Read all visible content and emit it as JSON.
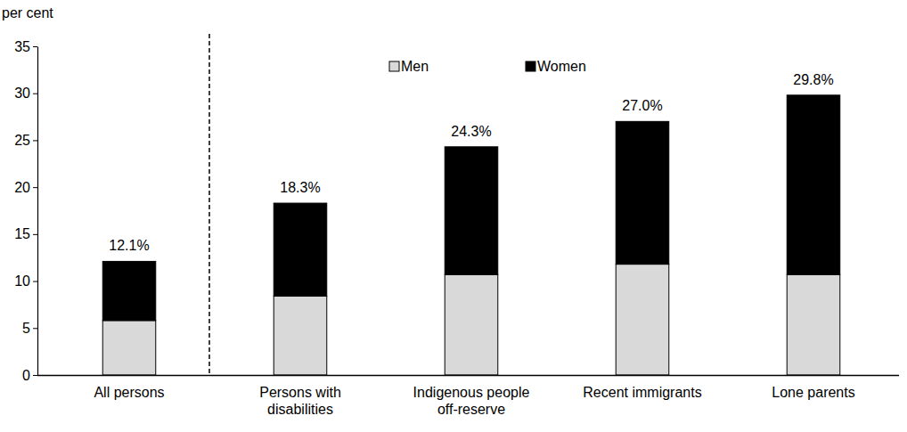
{
  "chart_data": {
    "type": "bar",
    "stacked": true,
    "legend": "top",
    "y_label": "per cent",
    "categories": [
      "All persons",
      "Persons with disabilities",
      "Indigenous people off-reserve",
      "Recent immigrants",
      "Lone parents"
    ],
    "series": [
      {
        "name": "Men",
        "color": "#d9d9d9",
        "values": [
          5.8,
          8.4,
          10.7,
          11.8,
          10.7
        ]
      },
      {
        "name": "Women",
        "color": "#000000",
        "values": [
          6.3,
          9.9,
          13.6,
          15.2,
          19.1
        ]
      }
    ],
    "annotations": [
      {
        "text": "12.1%",
        "value": 12.1
      },
      {
        "text": "18.3%",
        "value": 18.3
      },
      {
        "text": "24.3%",
        "value": 24.3
      },
      {
        "text": "27.0%",
        "value": 27.0
      },
      {
        "text": "29.8%",
        "value": 29.8
      }
    ],
    "ylim": [
      0,
      35
    ],
    "yticks": [
      0,
      5,
      10,
      15,
      20,
      25,
      30,
      35
    ],
    "grid": false
  }
}
